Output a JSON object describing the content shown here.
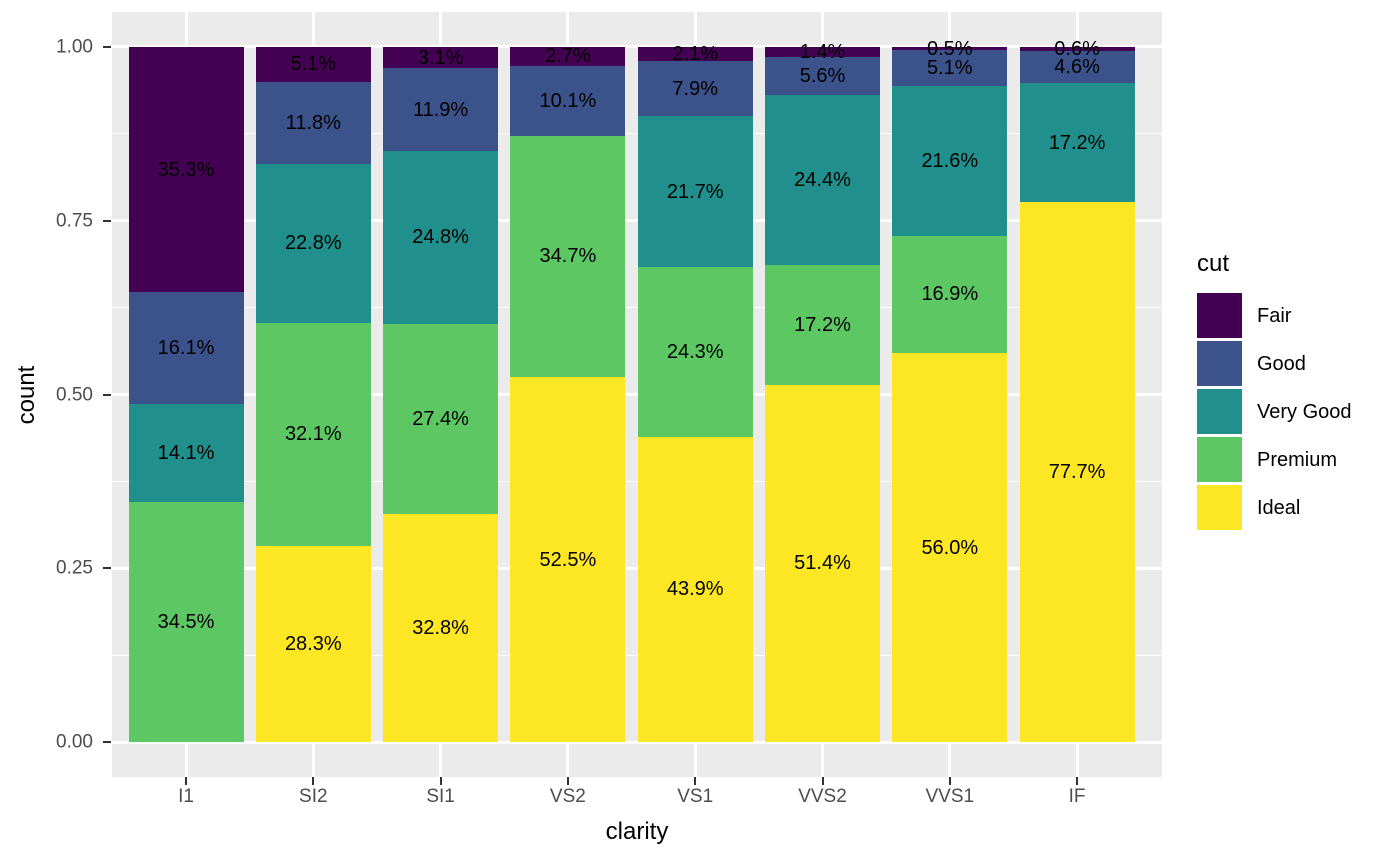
{
  "chart_data": {
    "type": "bar",
    "variant": "stacked-fill",
    "title": "",
    "xlabel": "clarity",
    "ylabel": "count",
    "categories": [
      "I1",
      "SI2",
      "SI1",
      "VS2",
      "VS1",
      "VVS2",
      "VVS1",
      "IF"
    ],
    "ylim": [
      0,
      1
    ],
    "grid": true,
    "y_ticks": [
      {
        "value": 1.0,
        "label": "1.00"
      },
      {
        "value": 0.75,
        "label": "0.75"
      },
      {
        "value": 0.5,
        "label": "0.50"
      },
      {
        "value": 0.25,
        "label": "0.25"
      },
      {
        "value": 0.0,
        "label": "0.00"
      }
    ],
    "legend": {
      "title": "cut",
      "position": "right",
      "entries": [
        "Fair",
        "Good",
        "Very Good",
        "Premium",
        "Ideal"
      ]
    },
    "series": [
      {
        "name": "Fair",
        "color": "#440154",
        "values_pct": [
          35.3,
          5.1,
          3.1,
          2.7,
          2.1,
          1.4,
          0.5,
          0.6
        ],
        "labels": [
          "35.3%",
          "5.1%",
          "3.1%",
          "2.7%",
          "2.1%",
          "1.4%",
          "0.5%",
          "0.6%"
        ]
      },
      {
        "name": "Good",
        "color": "#3B528B",
        "values_pct": [
          16.1,
          11.8,
          11.9,
          10.1,
          7.9,
          5.6,
          5.1,
          4.6
        ],
        "labels": [
          "16.1%",
          "11.8%",
          "11.9%",
          "10.1%",
          "7.9%",
          "5.6%",
          "5.1%",
          "4.6%"
        ]
      },
      {
        "name": "Very Good",
        "color": "#21908C",
        "values_pct": [
          14.1,
          22.8,
          24.8,
          null,
          21.7,
          24.4,
          21.6,
          17.2
        ],
        "labels": [
          "14.1%",
          "22.8%",
          "24.8%",
          null,
          "21.7%",
          "24.4%",
          "21.6%",
          "17.2%"
        ]
      },
      {
        "name": "Premium",
        "color": "#5DC863",
        "values_pct": [
          34.5,
          32.1,
          27.4,
          34.7,
          24.3,
          17.2,
          16.9,
          null
        ],
        "labels": [
          "34.5%",
          "32.1%",
          "27.4%",
          "34.7%",
          "24.3%",
          "17.2%",
          "16.9%",
          null
        ]
      },
      {
        "name": "Ideal",
        "color": "#FDE725",
        "values_pct": [
          null,
          28.3,
          32.8,
          52.5,
          43.9,
          51.4,
          56.0,
          77.7
        ],
        "labels": [
          null,
          "28.3%",
          "32.8%",
          "52.5%",
          "43.9%",
          "51.4%",
          "56.0%",
          "77.7%"
        ]
      }
    ],
    "style": {
      "panel_bg": "#EBEBEB",
      "grid_color": "#FFFFFF",
      "tick_color": "#333333",
      "tick_label_color": "#4D4D4D",
      "bar_label_color": "#000000"
    }
  }
}
